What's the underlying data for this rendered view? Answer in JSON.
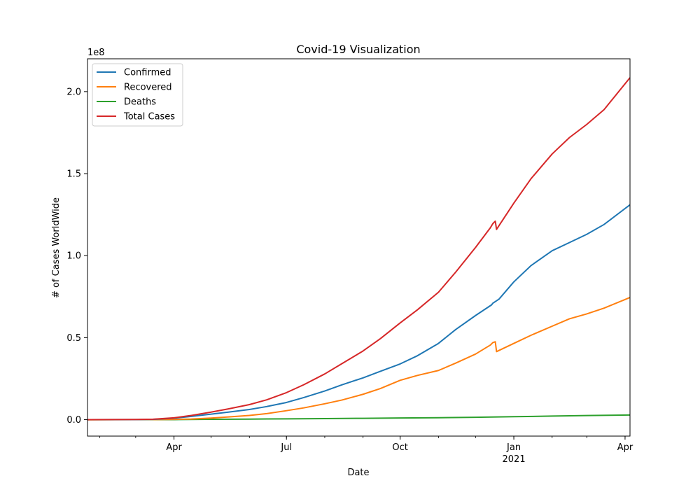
{
  "chart_data": {
    "type": "line",
    "title": "Covid-19 Visualization",
    "xlabel": "Date",
    "ylabel": "# of Cases WorldWide",
    "y_offset_label": "1e8",
    "x_start": "2020-01-22",
    "x_end": "2021-04-05",
    "x_ticks": [
      {
        "date": "2020-04-01",
        "label": "Apr",
        "sub": ""
      },
      {
        "date": "2020-07-01",
        "label": "Jul",
        "sub": ""
      },
      {
        "date": "2020-10-01",
        "label": "Oct",
        "sub": ""
      },
      {
        "date": "2021-01-01",
        "label": "Jan",
        "sub": "2021"
      },
      {
        "date": "2021-04-01",
        "label": "Apr",
        "sub": ""
      }
    ],
    "y_ticks": [
      {
        "value": 0,
        "label": "0.0"
      },
      {
        "value": 0.5,
        "label": "0.5"
      },
      {
        "value": 1.0,
        "label": "1.0"
      },
      {
        "value": 1.5,
        "label": "1.5"
      },
      {
        "value": 2.0,
        "label": "2.0"
      }
    ],
    "ylim": [
      -0.1,
      2.2
    ],
    "legend_position": "top-left",
    "grid": false,
    "series": [
      {
        "name": "Confirmed",
        "color": "#1f77b4",
        "points": [
          [
            "2020-01-22",
            0.0
          ],
          [
            "2020-02-15",
            0.0007
          ],
          [
            "2020-03-01",
            0.0009
          ],
          [
            "2020-03-15",
            0.0017
          ],
          [
            "2020-04-01",
            0.0093
          ],
          [
            "2020-04-15",
            0.02
          ],
          [
            "2020-05-01",
            0.034
          ],
          [
            "2020-05-15",
            0.046
          ],
          [
            "2020-06-01",
            0.062
          ],
          [
            "2020-06-15",
            0.08
          ],
          [
            "2020-07-01",
            0.105
          ],
          [
            "2020-07-15",
            0.135
          ],
          [
            "2020-08-01",
            0.175
          ],
          [
            "2020-08-15",
            0.213
          ],
          [
            "2020-09-01",
            0.255
          ],
          [
            "2020-09-15",
            0.295
          ],
          [
            "2020-10-01",
            0.34
          ],
          [
            "2020-10-15",
            0.39
          ],
          [
            "2020-11-01",
            0.465
          ],
          [
            "2020-11-15",
            0.55
          ],
          [
            "2020-12-01",
            0.635
          ],
          [
            "2020-12-14",
            0.7
          ],
          [
            "2020-12-15",
            0.71
          ],
          [
            "2020-12-20",
            0.735
          ],
          [
            "2021-01-01",
            0.84
          ],
          [
            "2021-01-15",
            0.94
          ],
          [
            "2021-02-01",
            1.03
          ],
          [
            "2021-02-15",
            1.08
          ],
          [
            "2021-03-01",
            1.13
          ],
          [
            "2021-03-15",
            1.19
          ],
          [
            "2021-04-05",
            1.31
          ]
        ]
      },
      {
        "name": "Recovered",
        "color": "#ff7f0e",
        "points": [
          [
            "2020-01-22",
            0.0
          ],
          [
            "2020-02-15",
            0.0001
          ],
          [
            "2020-03-01",
            0.0004
          ],
          [
            "2020-03-15",
            0.0008
          ],
          [
            "2020-04-01",
            0.0019
          ],
          [
            "2020-04-15",
            0.004
          ],
          [
            "2020-05-01",
            0.01
          ],
          [
            "2020-05-15",
            0.017
          ],
          [
            "2020-06-01",
            0.026
          ],
          [
            "2020-06-15",
            0.037
          ],
          [
            "2020-07-01",
            0.055
          ],
          [
            "2020-07-15",
            0.072
          ],
          [
            "2020-08-01",
            0.097
          ],
          [
            "2020-08-15",
            0.12
          ],
          [
            "2020-09-01",
            0.155
          ],
          [
            "2020-09-15",
            0.19
          ],
          [
            "2020-10-01",
            0.24
          ],
          [
            "2020-10-15",
            0.27
          ],
          [
            "2020-11-01",
            0.3
          ],
          [
            "2020-11-15",
            0.345
          ],
          [
            "2020-12-01",
            0.4
          ],
          [
            "2020-12-13",
            0.455
          ],
          [
            "2020-12-15",
            0.47
          ],
          [
            "2020-12-17",
            0.475
          ],
          [
            "2020-12-18",
            0.415
          ],
          [
            "2021-01-01",
            0.465
          ],
          [
            "2021-01-15",
            0.515
          ],
          [
            "2021-02-01",
            0.57
          ],
          [
            "2021-02-15",
            0.615
          ],
          [
            "2021-03-01",
            0.645
          ],
          [
            "2021-03-15",
            0.68
          ],
          [
            "2021-04-05",
            0.745
          ]
        ]
      },
      {
        "name": "Deaths",
        "color": "#2ca02c",
        "points": [
          [
            "2020-01-22",
            0.0
          ],
          [
            "2020-03-01",
            3e-05
          ],
          [
            "2020-04-01",
            0.0005
          ],
          [
            "2020-05-01",
            0.0023
          ],
          [
            "2020-06-01",
            0.0037
          ],
          [
            "2020-07-01",
            0.0051
          ],
          [
            "2020-08-01",
            0.0069
          ],
          [
            "2020-09-01",
            0.0085
          ],
          [
            "2020-10-01",
            0.0102
          ],
          [
            "2020-11-01",
            0.0119
          ],
          [
            "2020-12-01",
            0.0147
          ],
          [
            "2021-01-01",
            0.0182
          ],
          [
            "2021-02-01",
            0.0221
          ],
          [
            "2021-03-01",
            0.0254
          ],
          [
            "2021-04-05",
            0.0286
          ]
        ]
      },
      {
        "name": "Total Cases",
        "color": "#d62728",
        "points": [
          [
            "2020-01-22",
            0.0
          ],
          [
            "2020-02-15",
            0.0009
          ],
          [
            "2020-03-01",
            0.0014
          ],
          [
            "2020-03-15",
            0.0027
          ],
          [
            "2020-04-01",
            0.0117
          ],
          [
            "2020-04-15",
            0.026
          ],
          [
            "2020-05-01",
            0.046
          ],
          [
            "2020-05-15",
            0.066
          ],
          [
            "2020-06-01",
            0.092
          ],
          [
            "2020-06-15",
            0.121
          ],
          [
            "2020-07-01",
            0.165
          ],
          [
            "2020-07-15",
            0.213
          ],
          [
            "2020-08-01",
            0.279
          ],
          [
            "2020-08-15",
            0.342
          ],
          [
            "2020-09-01",
            0.419
          ],
          [
            "2020-09-15",
            0.494
          ],
          [
            "2020-10-01",
            0.59
          ],
          [
            "2020-10-15",
            0.67
          ],
          [
            "2020-11-01",
            0.777
          ],
          [
            "2020-11-15",
            0.9
          ],
          [
            "2020-12-01",
            1.05
          ],
          [
            "2020-12-13",
            1.17
          ],
          [
            "2020-12-15",
            1.195
          ],
          [
            "2020-12-17",
            1.21
          ],
          [
            "2020-12-18",
            1.16
          ],
          [
            "2021-01-01",
            1.32
          ],
          [
            "2021-01-15",
            1.47
          ],
          [
            "2021-02-01",
            1.62
          ],
          [
            "2021-02-15",
            1.72
          ],
          [
            "2021-03-01",
            1.8
          ],
          [
            "2021-03-15",
            1.89
          ],
          [
            "2021-04-05",
            2.085
          ]
        ]
      }
    ]
  }
}
